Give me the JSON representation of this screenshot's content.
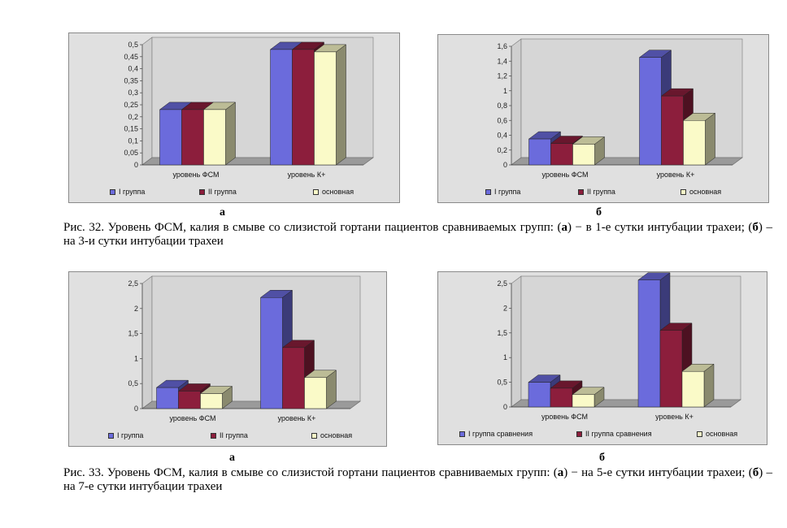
{
  "colors": {
    "series": [
      "#6b6bdc",
      "#8c1e3c",
      "#fafac8"
    ],
    "background": "#e0e0e0"
  },
  "figures": [
    {
      "panels": [
        {
          "sublabel": "а",
          "legend": [
            "I группа",
            "II группа",
            "основная"
          ],
          "chart": {
            "title": "",
            "categories": [
              "уровень ФСМ",
              "уровень К+"
            ],
            "series": [
              {
                "name": "I группа",
                "values": [
                  0.23,
                  0.48
                ]
              },
              {
                "name": "II группа",
                "values": [
                  0.23,
                  0.48
                ]
              },
              {
                "name": "основная",
                "values": [
                  0.23,
                  0.47
                ]
              }
            ],
            "ylim": [
              0,
              0.5
            ],
            "yticks": [
              "0",
              "0,05",
              "0,1",
              "0,15",
              "0,2",
              "0,25",
              "0,3",
              "0,35",
              "0,4",
              "0,45",
              "0,5"
            ]
          }
        },
        {
          "sublabel": "б",
          "legend": [
            "I группа",
            "II группа",
            "основная"
          ],
          "chart": {
            "title": "",
            "categories": [
              "уровень ФСМ",
              "уровень К+"
            ],
            "series": [
              {
                "name": "I группа",
                "values": [
                  0.35,
                  1.45
                ]
              },
              {
                "name": "II группа",
                "values": [
                  0.29,
                  0.93
                ]
              },
              {
                "name": "основная",
                "values": [
                  0.28,
                  0.6
                ]
              }
            ],
            "ylim": [
              0,
              1.6
            ],
            "yticks": [
              "0",
              "0,2",
              "0,4",
              "0,6",
              "0,8",
              "1",
              "1,2",
              "1,4",
              "1,6"
            ]
          }
        }
      ],
      "caption": {
        "prefix": "Рис. 32. Уровень ФСМ, калия в смыве со слизистой гортани пациентов сравниваемых групп: (",
        "a": "а",
        "mid": ") − в 1-е сутки интубации трахеи; (",
        "b": "б",
        "suffix": ") – на 3-и сутки интубации трахеи"
      }
    },
    {
      "panels": [
        {
          "sublabel": "а",
          "legend": [
            "I группа",
            "II группа",
            "основная"
          ],
          "chart": {
            "title": "",
            "categories": [
              "уровень ФСМ",
              "уровень К+"
            ],
            "series": [
              {
                "name": "I группа",
                "values": [
                  0.42,
                  2.22
                ]
              },
              {
                "name": "II группа",
                "values": [
                  0.35,
                  1.22
                ]
              },
              {
                "name": "основная",
                "values": [
                  0.3,
                  0.62
                ]
              }
            ],
            "ylim": [
              0,
              2.5
            ],
            "yticks": [
              "0",
              "0,5",
              "1",
              "1,5",
              "2",
              "2,5"
            ]
          }
        },
        {
          "sublabel": "б",
          "legend": [
            "I группа сравнения",
            "II группа сравнения",
            "основная"
          ],
          "chart": {
            "title": "",
            "categories": [
              "уровень ФСМ",
              "уровень К+"
            ],
            "series": [
              {
                "name": "I группа сравнения",
                "values": [
                  0.5,
                  2.57
                ]
              },
              {
                "name": "II группа сравнения",
                "values": [
                  0.38,
                  1.55
                ]
              },
              {
                "name": "основная",
                "values": [
                  0.25,
                  0.72
                ]
              }
            ],
            "ylim": [
              0,
              2.5
            ],
            "yticks": [
              "0",
              "0,5",
              "1",
              "1,5",
              "2",
              "2,5"
            ]
          }
        }
      ],
      "caption": {
        "prefix": "Рис. 33. Уровень ФСМ, калия в смыве со слизистой гортани пациентов сравниваемых групп: (",
        "a": "а",
        "mid": ") − на 5-е сутки интубации трахеи; (",
        "b": "б",
        "suffix": ") – на 7-е сутки интубации трахеи"
      }
    }
  ],
  "chart_data": [
    {
      "type": "bar",
      "title": "",
      "categories": [
        "уровень ФСМ",
        "уровень К+"
      ],
      "series": [
        {
          "name": "I группа",
          "values": [
            0.23,
            0.48
          ]
        },
        {
          "name": "II группа",
          "values": [
            0.23,
            0.48
          ]
        },
        {
          "name": "основная",
          "values": [
            0.23,
            0.47
          ]
        }
      ],
      "ylim": [
        0,
        0.5
      ]
    },
    {
      "type": "bar",
      "title": "",
      "categories": [
        "уровень ФСМ",
        "уровень К+"
      ],
      "series": [
        {
          "name": "I группа",
          "values": [
            0.35,
            1.45
          ]
        },
        {
          "name": "II группа",
          "values": [
            0.29,
            0.93
          ]
        },
        {
          "name": "основная",
          "values": [
            0.28,
            0.6
          ]
        }
      ],
      "ylim": [
        0,
        1.6
      ]
    },
    {
      "type": "bar",
      "title": "",
      "categories": [
        "уровень ФСМ",
        "уровень К+"
      ],
      "series": [
        {
          "name": "I группа",
          "values": [
            0.42,
            2.22
          ]
        },
        {
          "name": "II группа",
          "values": [
            0.35,
            1.22
          ]
        },
        {
          "name": "основная",
          "values": [
            0.3,
            0.62
          ]
        }
      ],
      "ylim": [
        0,
        2.5
      ]
    },
    {
      "type": "bar",
      "title": "",
      "categories": [
        "уровень ФСМ",
        "уровень К+"
      ],
      "series": [
        {
          "name": "I группа сравнения",
          "values": [
            0.5,
            2.57
          ]
        },
        {
          "name": "II группа сравнения",
          "values": [
            0.38,
            1.55
          ]
        },
        {
          "name": "основная",
          "values": [
            0.25,
            0.72
          ]
        }
      ],
      "ylim": [
        0,
        2.5
      ]
    }
  ]
}
